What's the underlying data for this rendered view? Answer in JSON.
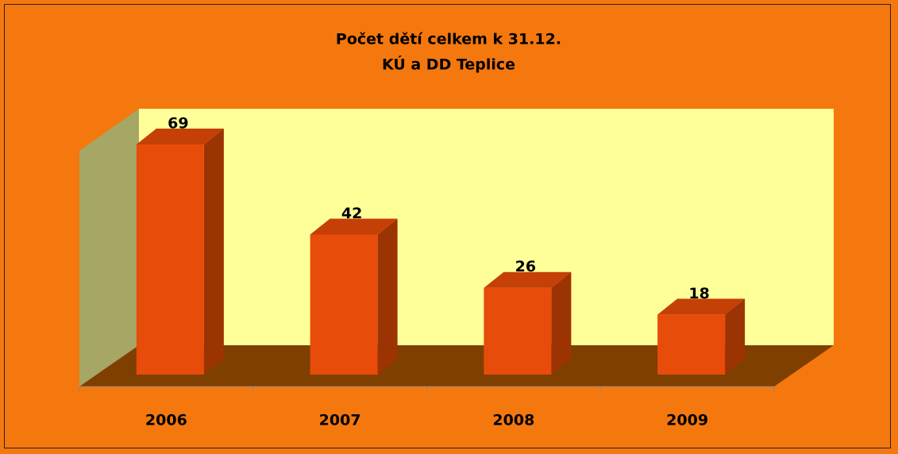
{
  "chart_data": {
    "type": "bar3d",
    "title": "Počet dětí celkem k 31.12.",
    "subtitle": "KÚ a DD Teplice",
    "categories": [
      "2006",
      "2007",
      "2008",
      "2009"
    ],
    "values": [
      69,
      42,
      26,
      18
    ],
    "color": "#e84c0a"
  }
}
